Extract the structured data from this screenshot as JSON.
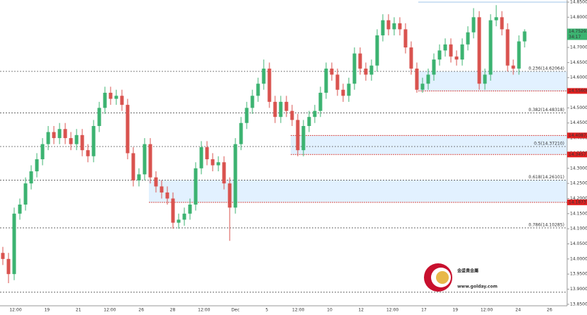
{
  "chart_data": {
    "type": "candlestick",
    "ylim": [
      13.845,
      14.857
    ],
    "yticks": [
      {
        "value": 13.85,
        "label": "13.85000"
      },
      {
        "value": 13.9,
        "label": "13.90000"
      },
      {
        "value": 13.95,
        "label": "13.95000"
      },
      {
        "value": 14.0,
        "label": "14.00000"
      },
      {
        "value": 14.05,
        "label": "14.05000"
      },
      {
        "value": 14.1,
        "label": "14.10000"
      },
      {
        "value": 14.15,
        "label": "14.15000"
      },
      {
        "value": 14.2,
        "label": "14.20000"
      },
      {
        "value": 14.25,
        "label": "14.25000"
      },
      {
        "value": 14.3,
        "label": "14.30000"
      },
      {
        "value": 14.35,
        "label": "14.35000"
      },
      {
        "value": 14.4,
        "label": "14.40000"
      },
      {
        "value": 14.45,
        "label": "14.45000"
      },
      {
        "value": 14.5,
        "label": "14.50000"
      },
      {
        "value": 14.55,
        "label": "14.55000"
      },
      {
        "value": 14.6,
        "label": "14.60000"
      },
      {
        "value": 14.65,
        "label": "14.65000"
      },
      {
        "value": 14.7,
        "label": "14.70000"
      },
      {
        "value": 14.75,
        "label": "14.75000"
      },
      {
        "value": 14.8,
        "label": "14.80000"
      },
      {
        "value": 14.85,
        "label": "14.85000"
      }
    ],
    "x_labels": [
      "12:00",
      "19",
      "21",
      "12:00",
      "26",
      "28",
      "12:00",
      "Dec",
      "5",
      "12:00",
      "10",
      "12",
      "12:00",
      "17",
      "19",
      "12:00",
      "24",
      "26"
    ],
    "up_color": "#3cb371",
    "down_color": "#d9534f",
    "series": [
      {
        "open": [
          14.02,
          14.0,
          13.95,
          14.15,
          14.18,
          14.25,
          14.29,
          14.33,
          14.38,
          14.42,
          14.4,
          14.43,
          14.4,
          14.38,
          14.41,
          14.36,
          14.34,
          14.44,
          14.5,
          14.55,
          14.53,
          14.54,
          14.51,
          14.35,
          14.26,
          14.28,
          14.38,
          14.27,
          14.24,
          14.22,
          14.2,
          14.12,
          14.13,
          14.15,
          14.18,
          14.3,
          14.37,
          14.33,
          14.31,
          14.32,
          14.25,
          14.17,
          14.38,
          14.45,
          14.5,
          14.54,
          14.58,
          14.63,
          14.52,
          14.47,
          14.52,
          14.49,
          14.46,
          14.36,
          14.44,
          14.47,
          14.49,
          14.55,
          14.63,
          14.61,
          14.56,
          14.54,
          14.58,
          14.68,
          14.63,
          14.61,
          14.64,
          14.74,
          14.79,
          14.76,
          14.78,
          14.76,
          14.7,
          14.63,
          14.56,
          14.58,
          14.61,
          14.66,
          14.69,
          14.71,
          14.67,
          14.66,
          14.71,
          14.75,
          14.8,
          14.58,
          14.61,
          14.79,
          14.8,
          14.76,
          14.64,
          14.63,
          14.72
        ],
        "high": [
          14.04,
          14.02,
          14.17,
          14.2,
          14.27,
          14.31,
          14.35,
          14.4,
          14.44,
          14.44,
          14.45,
          14.45,
          14.42,
          14.43,
          14.43,
          14.38,
          14.46,
          14.52,
          14.57,
          14.57,
          14.56,
          14.56,
          14.53,
          14.37,
          14.3,
          14.4,
          14.4,
          14.29,
          14.26,
          14.24,
          14.22,
          14.15,
          14.17,
          14.2,
          14.32,
          14.39,
          14.39,
          14.35,
          14.34,
          14.34,
          14.27,
          14.4,
          14.47,
          14.52,
          14.56,
          14.6,
          14.66,
          14.65,
          14.54,
          14.54,
          14.54,
          14.51,
          14.48,
          14.46,
          14.49,
          14.51,
          14.57,
          14.65,
          14.65,
          14.63,
          14.58,
          14.6,
          14.7,
          14.7,
          14.65,
          14.66,
          14.76,
          14.81,
          14.81,
          14.8,
          14.8,
          14.78,
          14.72,
          14.65,
          14.6,
          14.63,
          14.68,
          14.71,
          14.73,
          14.73,
          14.69,
          14.73,
          14.77,
          14.83,
          14.82,
          14.63,
          14.81,
          14.84,
          14.82,
          14.78,
          14.66,
          14.74,
          14.76
        ],
        "low": [
          13.98,
          13.92,
          13.93,
          14.13,
          14.16,
          14.23,
          14.27,
          14.31,
          14.36,
          14.38,
          14.38,
          14.38,
          14.36,
          14.36,
          14.34,
          14.32,
          14.32,
          14.42,
          14.48,
          14.51,
          14.51,
          14.49,
          14.33,
          14.24,
          14.24,
          14.26,
          14.25,
          14.22,
          14.2,
          14.18,
          14.1,
          14.1,
          14.11,
          14.13,
          14.16,
          14.28,
          14.31,
          14.29,
          14.29,
          14.23,
          14.06,
          14.15,
          14.36,
          14.43,
          14.48,
          14.52,
          14.56,
          14.5,
          14.45,
          14.45,
          14.47,
          14.44,
          14.34,
          14.34,
          14.42,
          14.45,
          14.47,
          14.53,
          14.59,
          14.54,
          14.52,
          14.52,
          14.56,
          14.61,
          14.59,
          14.59,
          14.62,
          14.72,
          14.74,
          14.74,
          14.74,
          14.68,
          14.61,
          14.55,
          14.55,
          14.56,
          14.59,
          14.64,
          14.67,
          14.65,
          14.64,
          14.64,
          14.69,
          14.73,
          14.56,
          14.56,
          14.59,
          14.77,
          14.74,
          14.62,
          14.61,
          14.61,
          14.7
        ],
        "close": [
          14.0,
          13.95,
          14.15,
          14.18,
          14.25,
          14.29,
          14.33,
          14.38,
          14.42,
          14.4,
          14.43,
          14.4,
          14.38,
          14.41,
          14.36,
          14.34,
          14.44,
          14.5,
          14.55,
          14.53,
          14.54,
          14.51,
          14.35,
          14.26,
          14.28,
          14.38,
          14.27,
          14.24,
          14.22,
          14.2,
          14.12,
          14.13,
          14.15,
          14.18,
          14.3,
          14.37,
          14.33,
          14.31,
          14.32,
          14.25,
          14.17,
          14.38,
          14.45,
          14.5,
          14.54,
          14.58,
          14.63,
          14.52,
          14.47,
          14.52,
          14.49,
          14.46,
          14.36,
          14.44,
          14.47,
          14.49,
          14.55,
          14.63,
          14.61,
          14.56,
          14.54,
          14.58,
          14.68,
          14.63,
          14.61,
          14.64,
          14.74,
          14.79,
          14.76,
          14.78,
          14.76,
          14.7,
          14.63,
          14.56,
          14.58,
          14.61,
          14.66,
          14.69,
          14.71,
          14.67,
          14.66,
          14.71,
          14.75,
          14.8,
          14.58,
          14.61,
          14.79,
          14.8,
          14.76,
          14.64,
          14.63,
          14.72,
          14.75293
        ]
      }
    ],
    "current_price": {
      "value": 14.75293,
      "time": "34:17"
    },
    "fib_levels": [
      {
        "value": 14.85
      },
      {
        "value": 14.62064,
        "label": "0.236(14.62064)"
      },
      {
        "value": 14.48318,
        "label": "0.382(14.48318)"
      },
      {
        "value": 14.3721,
        "label": "0.5(14.37210)"
      },
      {
        "value": 14.26101,
        "label": "0.618(14.26101)"
      },
      {
        "value": 14.10285,
        "label": "0.786(14.10285)"
      },
      {
        "value": 13.89
      }
    ],
    "zones": [
      {
        "high": 14.62064,
        "low": 14.55608
      },
      {
        "high": 14.40872,
        "low": 14.34571
      },
      {
        "high": 14.26101,
        "low": 14.18737
      }
    ],
    "watermark": {
      "name": "金盛貴金屬",
      "url": "www.golday.com"
    }
  }
}
